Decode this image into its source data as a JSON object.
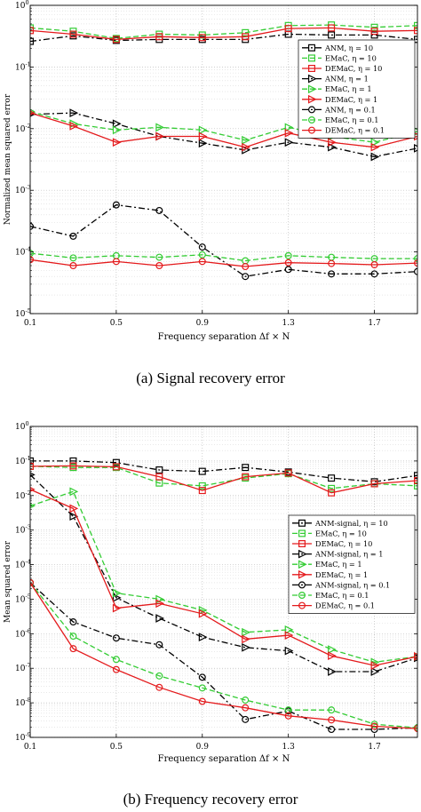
{
  "captions": {
    "a": "(a)  Signal recovery error",
    "b": "(b)  Frequency recovery error"
  },
  "chart_data": [
    {
      "type": "line",
      "title": "",
      "xlabel": "Frequency separation Δf × N",
      "ylabel": "Normalized mean squared error",
      "yscale": "log",
      "ylim": [
        1e-05,
        1
      ],
      "xlim": [
        0.1,
        1.9
      ],
      "grid": true,
      "legend_position": "top-right",
      "x_ticks": [
        0.1,
        0.5,
        0.9,
        1.3,
        1.7
      ],
      "y_ticks": [
        1e-05,
        0.0001,
        0.001,
        0.01,
        0.1,
        1
      ],
      "y_tick_labels": [
        {
          "base": "10",
          "exp": "-5"
        },
        {
          "base": "10",
          "exp": "-4"
        },
        {
          "base": "10",
          "exp": "-3"
        },
        {
          "base": "10",
          "exp": "-2"
        },
        {
          "base": "10",
          "exp": "-1"
        },
        {
          "base": "10",
          "exp": "0"
        }
      ],
      "x": [
        0.1,
        0.3,
        0.5,
        0.7,
        0.9,
        1.1,
        1.3,
        1.5,
        1.7,
        1.9
      ],
      "series": [
        {
          "name": "ANM, η = 10",
          "color": "#000000",
          "dash": "dashdot",
          "marker": "square",
          "values": [
            0.26,
            0.32,
            0.27,
            0.28,
            0.28,
            0.28,
            0.34,
            0.33,
            0.33,
            0.28
          ]
        },
        {
          "name": "EMaC, η = 10",
          "color": "#33cc33",
          "dash": "dashed",
          "marker": "square",
          "values": [
            0.43,
            0.38,
            0.29,
            0.34,
            0.33,
            0.36,
            0.47,
            0.48,
            0.44,
            0.47
          ]
        },
        {
          "name": "DEMaC, η = 10",
          "color": "#e41a1c",
          "dash": "solid",
          "marker": "square",
          "values": [
            0.39,
            0.34,
            0.28,
            0.31,
            0.3,
            0.31,
            0.42,
            0.43,
            0.38,
            0.39
          ]
        },
        {
          "name": "ANM, η = 1",
          "color": "#000000",
          "dash": "dashdot",
          "marker": "triangle",
          "values": [
            0.017,
            0.018,
            0.012,
            0.0075,
            0.0058,
            0.0045,
            0.006,
            0.005,
            0.0035,
            0.0048
          ]
        },
        {
          "name": "EMaC, η = 1",
          "color": "#33cc33",
          "dash": "dashed",
          "marker": "triangle",
          "values": [
            0.019,
            0.012,
            0.0095,
            0.0105,
            0.0095,
            0.0065,
            0.0105,
            0.0075,
            0.006,
            0.009
          ]
        },
        {
          "name": "DEMaC, η = 1",
          "color": "#e41a1c",
          "dash": "solid",
          "marker": "triangle",
          "values": [
            0.018,
            0.011,
            0.006,
            0.0075,
            0.0075,
            0.005,
            0.0085,
            0.006,
            0.005,
            0.0075
          ]
        },
        {
          "name": "ANM, η = 0.1",
          "color": "#000000",
          "dash": "dashdot",
          "marker": "circle",
          "values": [
            0.00026,
            0.00018,
            0.00058,
            0.00047,
            0.00012,
            4e-05,
            5.2e-05,
            4.4e-05,
            4.4e-05,
            4.8e-05
          ]
        },
        {
          "name": "EMaC, η = 0.1",
          "color": "#33cc33",
          "dash": "dashed",
          "marker": "circle",
          "values": [
            9.5e-05,
            8e-05,
            8.7e-05,
            8.2e-05,
            9e-05,
            7.2e-05,
            8.7e-05,
            8.2e-05,
            7.8e-05,
            7.8e-05
          ]
        },
        {
          "name": "DEMaC, η = 0.1",
          "color": "#e41a1c",
          "dash": "solid",
          "marker": "circle",
          "values": [
            7.5e-05,
            6e-05,
            7e-05,
            6e-05,
            7e-05,
            5.8e-05,
            6.7e-05,
            6.5e-05,
            6.2e-05,
            6.6e-05
          ]
        }
      ]
    },
    {
      "type": "line",
      "title": "",
      "xlabel": "Frequency separation Δf × N",
      "ylabel": "Mean squared error",
      "yscale": "log",
      "ylim": [
        1e-09,
        1
      ],
      "xlim": [
        0.1,
        1.9
      ],
      "grid": true,
      "legend_position": "right",
      "x_ticks": [
        0.1,
        0.5,
        0.9,
        1.3,
        1.7
      ],
      "y_ticks": [
        1e-09,
        1e-08,
        1e-07,
        1e-06,
        1e-05,
        0.0001,
        0.001,
        0.01,
        0.1,
        1
      ],
      "y_tick_labels": [
        {
          "base": "10",
          "exp": "-9"
        },
        {
          "base": "10",
          "exp": "-8"
        },
        {
          "base": "10",
          "exp": "-7"
        },
        {
          "base": "10",
          "exp": "-6"
        },
        {
          "base": "10",
          "exp": "-5"
        },
        {
          "base": "10",
          "exp": "-4"
        },
        {
          "base": "10",
          "exp": "-3"
        },
        {
          "base": "10",
          "exp": "-2"
        },
        {
          "base": "10",
          "exp": "-1"
        },
        {
          "base": "10",
          "exp": "0"
        }
      ],
      "x": [
        0.1,
        0.3,
        0.5,
        0.7,
        0.9,
        1.1,
        1.3,
        1.5,
        1.7,
        1.9
      ],
      "series": [
        {
          "name": "ANM-signal, η = 10",
          "color": "#000000",
          "dash": "dashdot",
          "marker": "square",
          "values": [
            0.1,
            0.1,
            0.09,
            0.055,
            0.05,
            0.065,
            0.048,
            0.032,
            0.025,
            0.038
          ]
        },
        {
          "name": "EMaC, η = 10",
          "color": "#33cc33",
          "dash": "dashed",
          "marker": "square",
          "values": [
            0.07,
            0.065,
            0.065,
            0.023,
            0.019,
            0.032,
            0.043,
            0.016,
            0.022,
            0.019
          ]
        },
        {
          "name": "DEMaC, η = 10",
          "color": "#e41a1c",
          "dash": "solid",
          "marker": "square",
          "values": [
            0.07,
            0.072,
            0.068,
            0.035,
            0.014,
            0.035,
            0.045,
            0.012,
            0.022,
            0.027
          ]
        },
        {
          "name": "ANM-signal, η = 1",
          "color": "#000000",
          "dash": "dashdot",
          "marker": "triangle",
          "values": [
            0.04,
            0.0025,
            1.1e-05,
            2.8e-06,
            8e-07,
            4e-07,
            3.2e-07,
            8e-08,
            8e-08,
            2e-07
          ]
        },
        {
          "name": "EMaC, η = 1",
          "color": "#33cc33",
          "dash": "dashed",
          "marker": "triangle",
          "values": [
            0.005,
            0.013,
            1.5e-05,
            1e-05,
            4.8e-06,
            1.1e-06,
            1.3e-06,
            3.5e-07,
            1.5e-07,
            2.2e-07
          ]
        },
        {
          "name": "DEMaC, η = 1",
          "color": "#e41a1c",
          "dash": "solid",
          "marker": "triangle",
          "values": [
            0.015,
            0.0042,
            5.5e-06,
            7.5e-06,
            3.8e-06,
            7e-07,
            9e-07,
            2.3e-07,
            1.2e-07,
            2.2e-07
          ]
        },
        {
          "name": "ANM-signal, η = 0.1",
          "color": "#000000",
          "dash": "dashdot",
          "marker": "circle",
          "values": [
            3e-05,
            2.2e-06,
            7.5e-07,
            4.8e-07,
            5.5e-08,
            3.3e-09,
            5.8e-09,
            1.7e-09,
            1.7e-09,
            1.9e-09
          ]
        },
        {
          "name": "EMaC, η = 0.1",
          "color": "#33cc33",
          "dash": "dashed",
          "marker": "circle",
          "values": [
            3e-05,
            8.5e-07,
            1.8e-07,
            6e-08,
            2.7e-08,
            1.2e-08,
            6.2e-09,
            6.2e-09,
            2.4e-09,
            1.9e-09
          ]
        },
        {
          "name": "DEMaC, η = 0.1",
          "color": "#e41a1c",
          "dash": "solid",
          "marker": "circle",
          "values": [
            3e-05,
            3.7e-07,
            9.2e-08,
            2.8e-08,
            1.1e-08,
            7.2e-09,
            4.2e-09,
            3.2e-09,
            2.1e-09,
            1.8e-09
          ]
        }
      ]
    }
  ]
}
